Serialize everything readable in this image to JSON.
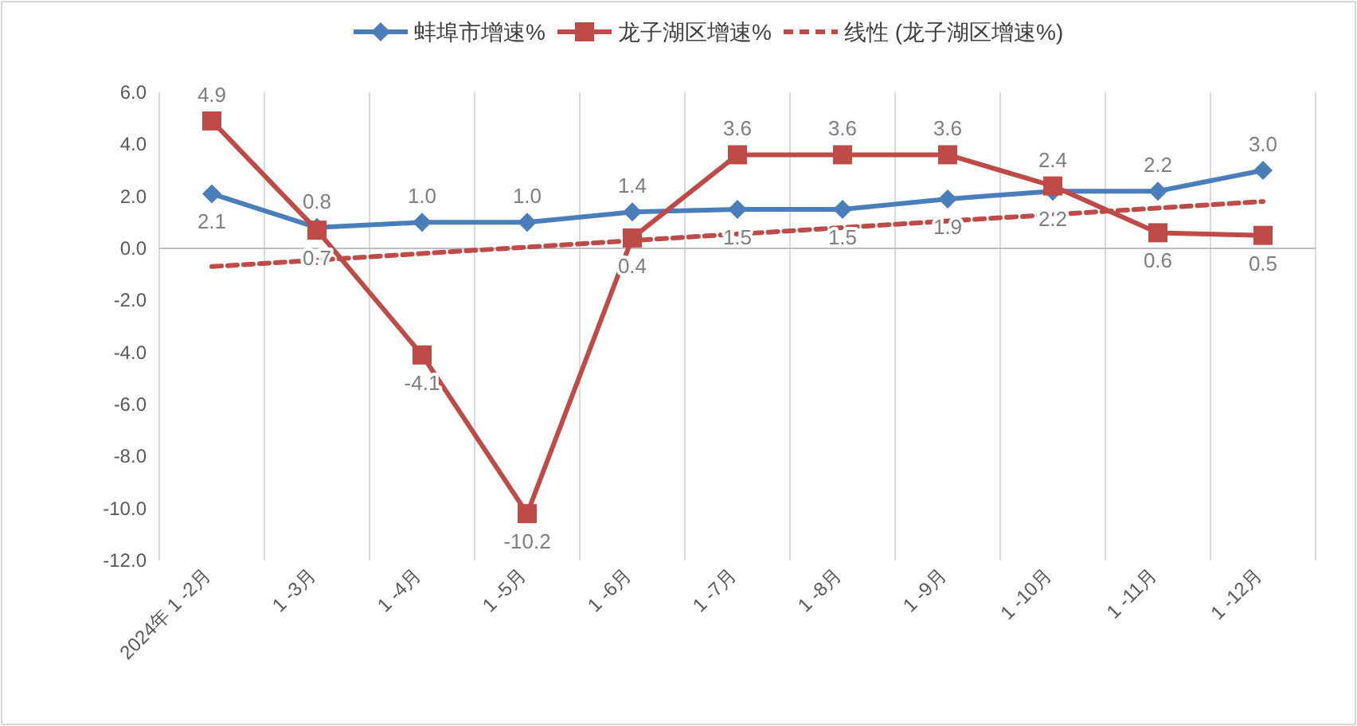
{
  "chart_data": {
    "type": "line",
    "categories": [
      "2024年 1 -2月",
      "1 -3月",
      "1 -4月",
      "1 -5月",
      "1 -6月",
      "1 -7月",
      "1 -8月",
      "1 -9月",
      "1 -10月",
      "1 -11月",
      "1 -12月"
    ],
    "series": [
      {
        "name": "蚌埠市增速%",
        "color": "#4a7ebb",
        "marker": "diamond",
        "values": [
          2.1,
          0.8,
          1.0,
          1.0,
          1.4,
          1.5,
          1.5,
          1.9,
          2.2,
          2.2,
          3.0
        ],
        "value_labels": [
          "2.1",
          "0.8",
          "1.0",
          "1.0",
          "1.4",
          "1.5",
          "1.5",
          "1.9",
          "2.2",
          "2.2",
          "3.0"
        ]
      },
      {
        "name": "龙子湖区增速%",
        "color": "#be4b48",
        "marker": "square",
        "values": [
          4.9,
          0.7,
          -4.1,
          -10.2,
          0.4,
          3.6,
          3.6,
          3.6,
          2.4,
          0.6,
          0.5
        ],
        "value_labels": [
          "4.9",
          "0.7",
          "-4.1",
          "-10.2",
          "0.4",
          "3.6",
          "3.6",
          "3.6",
          "2.4",
          "0.6",
          "0.5"
        ]
      },
      {
        "name": "线性 (龙子湖区增速%)",
        "color": "#be4b48",
        "type": "line",
        "line_style": "dashed",
        "marker": "none",
        "x": [
          "2024年 1 -2月",
          "1 -12月"
        ],
        "values": [
          -0.7,
          1.8
        ]
      }
    ],
    "ylim": [
      -12,
      6
    ],
    "yticks": [
      {
        "value": -12,
        "label": "-12.0"
      },
      {
        "value": -10,
        "label": "-10.0"
      },
      {
        "value": -8,
        "label": "-8.0"
      },
      {
        "value": -6,
        "label": "-6.0"
      },
      {
        "value": -4,
        "label": "-4.0"
      },
      {
        "value": -2,
        "label": "-2.0"
      },
      {
        "value": 0,
        "label": "0.0"
      },
      {
        "value": 2,
        "label": "2.0"
      },
      {
        "value": 4,
        "label": "4.0"
      },
      {
        "value": 6,
        "label": "6.0"
      }
    ],
    "grid": "x",
    "legend": "top"
  }
}
